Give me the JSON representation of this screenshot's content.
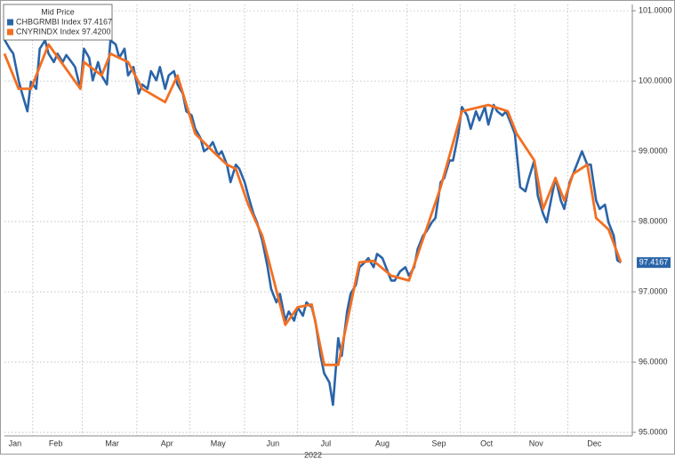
{
  "chart_data": {
    "type": "line",
    "title": "Mid Price",
    "x_axis_label": "2022",
    "xlim": [
      15,
      370
    ],
    "xticks": [
      {
        "value": 21,
        "label": "Jan"
      },
      {
        "value": 44,
        "label": "Feb"
      },
      {
        "value": 76,
        "label": "Mar"
      },
      {
        "value": 107,
        "label": "Apr"
      },
      {
        "value": 136,
        "label": "May"
      },
      {
        "value": 167,
        "label": "Jun"
      },
      {
        "value": 197,
        "label": "Jul"
      },
      {
        "value": 229,
        "label": "Aug"
      },
      {
        "value": 261,
        "label": "Sep"
      },
      {
        "value": 288,
        "label": "Oct"
      },
      {
        "value": 316,
        "label": "Nov"
      },
      {
        "value": 349,
        "label": "Dec"
      }
    ],
    "xgrid": [
      31,
      59,
      90,
      120,
      151,
      181,
      212,
      243,
      273,
      304,
      334
    ],
    "ylim": [
      94.95,
      101.09
    ],
    "yticks": [
      {
        "value": 95,
        "label": "95.0000"
      },
      {
        "value": 96,
        "label": "96.0000"
      },
      {
        "value": 97,
        "label": "97.0000"
      },
      {
        "value": 98,
        "label": "98.0000"
      },
      {
        "value": 99,
        "label": "99.0000"
      },
      {
        "value": 100,
        "label": "100.0000"
      },
      {
        "value": 101,
        "label": "101.0000"
      }
    ],
    "grid": true,
    "legend": "top-left",
    "series": [
      {
        "name": "CHBGRMBI Index 97.4167",
        "color": "#2a64a8",
        "last_label": "97.4167",
        "x": [
          15,
          18,
          20,
          23,
          25,
          28,
          30,
          33,
          35,
          38,
          40,
          43,
          45,
          48,
          50,
          53,
          55,
          58,
          60,
          63,
          65,
          68,
          70,
          73,
          75,
          78,
          80,
          83,
          85,
          88,
          91,
          93,
          96,
          98,
          101,
          103,
          106,
          108,
          111,
          113,
          116,
          118,
          121,
          123,
          126,
          128,
          131,
          133,
          136,
          138,
          141,
          143,
          146,
          148,
          151,
          153,
          156,
          158,
          161,
          164,
          166,
          169,
          171,
          174,
          176,
          179,
          181,
          184,
          186,
          189,
          191,
          194,
          196,
          199,
          201,
          204,
          206,
          209,
          211,
          214,
          216,
          219,
          221,
          224,
          226,
          229,
          231,
          234,
          236,
          239,
          242,
          244,
          247,
          249,
          252,
          254,
          257,
          259,
          262,
          264,
          267,
          269,
          272,
          274,
          277,
          279,
          282,
          284,
          287,
          289,
          292,
          294,
          297,
          299,
          302,
          304,
          307,
          310,
          312,
          315,
          317,
          320,
          322,
          325,
          327,
          330,
          332,
          335,
          337,
          340,
          342,
          345,
          347,
          350,
          352,
          355,
          357,
          360,
          362,
          364
        ],
        "values": [
          100.59,
          100.46,
          100.39,
          100.01,
          99.82,
          99.57,
          99.99,
          99.89,
          100.46,
          100.58,
          100.39,
          100.27,
          100.39,
          100.27,
          100.37,
          100.27,
          100.2,
          99.89,
          100.46,
          100.33,
          100.01,
          100.27,
          100.08,
          99.95,
          100.58,
          100.52,
          100.33,
          100.46,
          100.08,
          100.2,
          99.82,
          99.95,
          99.89,
          100.14,
          100.01,
          100.2,
          99.89,
          100.08,
          100.14,
          99.95,
          99.82,
          99.57,
          99.51,
          99.32,
          99.19,
          99.0,
          99.06,
          99.13,
          98.94,
          99.0,
          98.81,
          98.56,
          98.81,
          98.75,
          98.56,
          98.37,
          98.11,
          97.99,
          97.73,
          97.35,
          97.04,
          96.85,
          96.97,
          96.59,
          96.72,
          96.59,
          96.78,
          96.66,
          96.85,
          96.78,
          96.59,
          96.09,
          95.84,
          95.71,
          95.39,
          96.34,
          96.09,
          96.72,
          96.97,
          97.1,
          97.35,
          97.42,
          97.48,
          97.35,
          97.54,
          97.48,
          97.35,
          97.16,
          97.16,
          97.29,
          97.35,
          97.23,
          97.35,
          97.61,
          97.8,
          97.86,
          97.99,
          98.05,
          98.56,
          98.62,
          98.87,
          98.87,
          99.25,
          99.63,
          99.51,
          99.32,
          99.57,
          99.44,
          99.63,
          99.38,
          99.66,
          99.57,
          99.51,
          99.57,
          99.38,
          99.25,
          98.49,
          98.43,
          98.62,
          98.87,
          98.37,
          98.11,
          97.99,
          98.37,
          98.62,
          98.3,
          98.18,
          98.56,
          98.68,
          98.87,
          99.0,
          98.81,
          98.81,
          98.3,
          98.18,
          98.24,
          97.99,
          97.8,
          97.45,
          97.4167
        ]
      },
      {
        "name": "CNYRINDX Index  97.4200",
        "color": "#f36f21",
        "x": [
          15,
          23,
          30,
          40,
          58,
          60,
          70,
          75,
          85,
          93,
          106,
          113,
          123,
          133,
          141,
          146,
          153,
          161,
          174,
          181,
          189,
          196,
          204,
          216,
          224,
          234,
          244,
          262,
          274,
          289,
          300,
          305,
          315,
          320,
          327,
          332,
          337,
          345,
          350,
          357,
          364
        ],
        "values": [
          100.39,
          99.89,
          99.89,
          100.52,
          99.89,
          100.27,
          100.08,
          100.39,
          100.27,
          99.89,
          99.7,
          100.08,
          99.25,
          99.0,
          98.81,
          98.75,
          98.24,
          97.8,
          96.53,
          96.78,
          96.82,
          95.96,
          95.96,
          97.42,
          97.44,
          97.23,
          97.16,
          98.49,
          99.57,
          99.66,
          99.57,
          99.25,
          98.87,
          98.18,
          98.62,
          98.3,
          98.68,
          98.81,
          98.05,
          97.89,
          97.42
        ]
      }
    ]
  }
}
